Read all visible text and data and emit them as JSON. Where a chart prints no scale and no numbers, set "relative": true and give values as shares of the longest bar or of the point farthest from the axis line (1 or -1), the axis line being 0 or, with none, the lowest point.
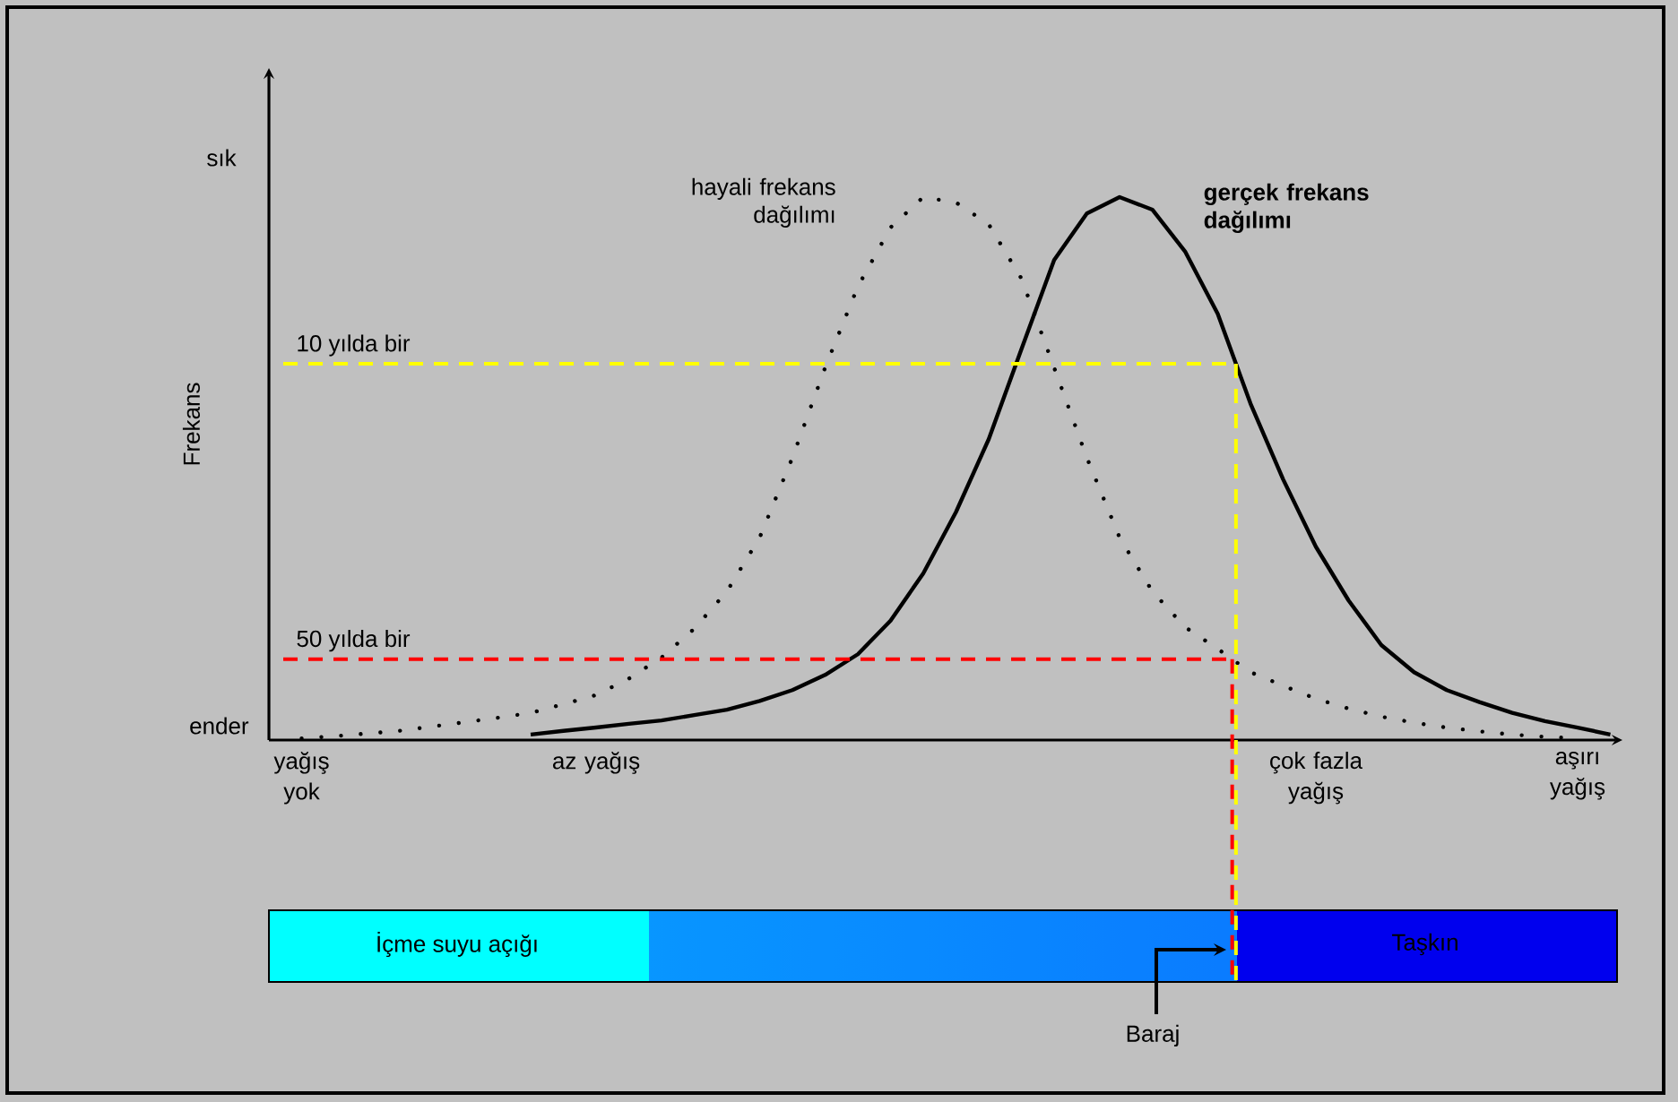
{
  "chart_data": {
    "type": "line",
    "relative": true,
    "ylabel": "Frekans",
    "categories": [
      null,
      "yağış yok",
      null,
      null,
      null,
      null,
      null,
      null,
      null,
      null,
      "az yağış",
      null,
      null,
      null,
      null,
      null,
      null,
      null,
      null,
      null,
      null,
      null,
      null,
      null,
      null,
      null,
      null,
      null,
      null,
      null,
      null,
      null,
      "çok fazla yağış",
      null,
      null,
      null,
      null,
      null,
      null,
      null,
      "aşırı yağış",
      null
    ],
    "series": [
      {
        "name": "hayali frekans dağılımı",
        "color": "#000000",
        "line_style": "dotted",
        "values": [
          null,
          0.003,
          0.007,
          0.012,
          0.017,
          0.025,
          0.033,
          0.041,
          0.05,
          0.066,
          0.083,
          0.113,
          0.152,
          0.205,
          0.274,
          0.373,
          0.52,
          0.686,
          0.835,
          0.944,
          1.0,
          0.99,
          0.95,
          0.85,
          0.686,
          0.52,
          0.373,
          0.274,
          0.208,
          0.168,
          0.125,
          0.1,
          0.076,
          0.058,
          0.043,
          0.032,
          0.023,
          0.016,
          0.01,
          0.006,
          0.003,
          null
        ]
      },
      {
        "name": "gerçek frekans dağılımı",
        "color": "#000000",
        "line_style": "solid",
        "values": [
          null,
          null,
          null,
          null,
          null,
          null,
          null,
          null,
          0.01,
          0.017,
          0.023,
          0.03,
          0.036,
          0.046,
          0.056,
          0.072,
          0.092,
          0.12,
          0.158,
          0.22,
          0.307,
          0.42,
          0.554,
          0.72,
          0.884,
          0.97,
          1.0,
          0.977,
          0.9,
          0.785,
          0.62,
          0.48,
          0.356,
          0.257,
          0.175,
          0.125,
          0.092,
          0.07,
          0.05,
          0.035,
          0.023,
          0.01
        ]
      }
    ],
    "ref_lines": [
      {
        "axis": "y",
        "value": 0.693,
        "label": "10 yılda bir",
        "color": "#ffff00",
        "line_style": "dashed"
      },
      {
        "axis": "y",
        "value": 0.149,
        "label": "50 yılda bir",
        "color": "#ff0000",
        "line_style": "dashed"
      }
    ],
    "annotations": [
      "sık",
      "ender",
      "İçme suyu açığı",
      "Taşkın",
      "Baraj"
    ]
  }
}
